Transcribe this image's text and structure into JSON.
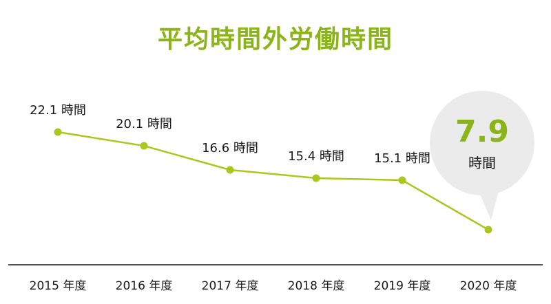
{
  "title": "平均時間外労働時間",
  "colors": {
    "accent": "#8ab417",
    "line": "#a8c81e",
    "callout_bg": "#ebebeb",
    "text": "#1a1a1a",
    "axis": "#1a1a1a"
  },
  "chart_data": {
    "type": "line",
    "title": "平均時間外労働時間",
    "xlabel": "",
    "ylabel": "",
    "grid": false,
    "categories": [
      "2015 年度",
      "2016 年度",
      "2017 年度",
      "2018 年度",
      "2019 年度",
      "2020 年度"
    ],
    "series": [
      {
        "values": [
          22.1,
          20.1,
          16.6,
          15.4,
          15.1,
          7.9
        ],
        "labels": [
          "22.1 時間",
          "20.1 時間",
          "16.6 時間",
          "15.4 時間",
          "15.1 時間",
          ""
        ]
      }
    ],
    "ylim": [
      0,
      24
    ],
    "callout": {
      "value": "7.9",
      "unit": "時間"
    }
  }
}
